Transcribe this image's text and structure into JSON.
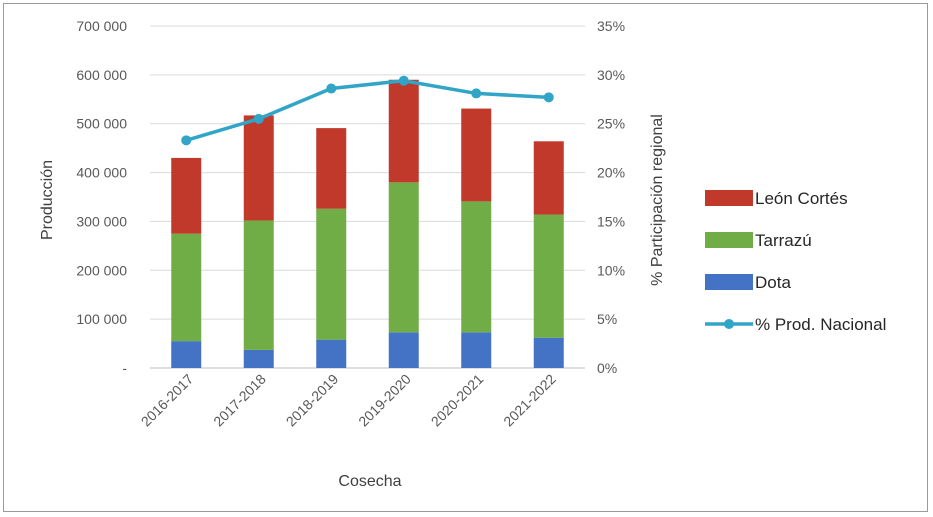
{
  "chart_data": {
    "type": "bar",
    "stacked": true,
    "categories": [
      "2016-2017",
      "2017-2018",
      "2018-2019",
      "2019-2020",
      "2020-2021",
      "2021-2022"
    ],
    "series": [
      {
        "name": "Dota",
        "values": [
          55000,
          37000,
          58000,
          73000,
          73000,
          62000
        ],
        "color": "#4472C4"
      },
      {
        "name": "Tarrazú",
        "values": [
          220000,
          265000,
          268000,
          307000,
          268000,
          252000
        ],
        "color": "#70AD47"
      },
      {
        "name": "León Cortés",
        "values": [
          155000,
          215000,
          165000,
          210000,
          190000,
          150000
        ],
        "color": "#C0392B"
      }
    ],
    "line_series": {
      "name": "% Prod. Nacional",
      "axis": "right",
      "values": [
        23.3,
        25.5,
        28.6,
        29.4,
        28.1,
        27.7
      ],
      "color": "#31A5C7"
    },
    "xlabel": "Cosecha",
    "ylabel": "Producción",
    "y2label": "% Participación regional",
    "ylim": [
      0,
      700000
    ],
    "y2lim": [
      0,
      35
    ],
    "yticks": [
      "-",
      "100 000",
      "200 000",
      "300 000",
      "400 000",
      "500 000",
      "600 000",
      "700 000"
    ],
    "y2ticks": [
      "0%",
      "5%",
      "10%",
      "15%",
      "20%",
      "25%",
      "30%",
      "35%"
    ],
    "legend_order": [
      "León Cortés",
      "Tarrazú",
      "Dota",
      "% Prod. Nacional"
    ],
    "legend_position": "right",
    "grid": true
  }
}
